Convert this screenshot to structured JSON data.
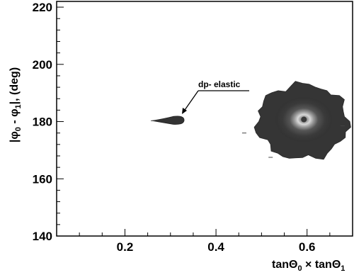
{
  "chart_data": {
    "type": "heatmap",
    "title": "",
    "xlabel": "tanΘ0 × tanΘ1",
    "ylabel": "|φ0 - φ1|, (deg)",
    "xlim": [
      0.05,
      0.7
    ],
    "ylim": [
      140,
      222
    ],
    "x_ticks": [
      "0.2",
      "0.4",
      "0.6"
    ],
    "x_tick_values": [
      0.2,
      0.4,
      0.6
    ],
    "y_ticks": [
      "140",
      "160",
      "180",
      "200",
      "220"
    ],
    "y_tick_values": [
      140,
      160,
      180,
      200,
      220
    ],
    "grid": false,
    "annotation": {
      "text": "dp- elastic",
      "x": 0.36,
      "y": 192,
      "arrow_to": [
        0.325,
        182
      ]
    },
    "clusters": [
      {
        "name": "dp- elastic",
        "center": [
          0.3,
          180.3
        ],
        "x_range": [
          0.26,
          0.33
        ],
        "y_range": [
          178.5,
          182
        ]
      },
      {
        "name": "",
        "center": [
          0.59,
          180.0
        ],
        "x_range": [
          0.47,
          0.67
        ],
        "y_range": [
          167,
          193
        ]
      }
    ]
  }
}
